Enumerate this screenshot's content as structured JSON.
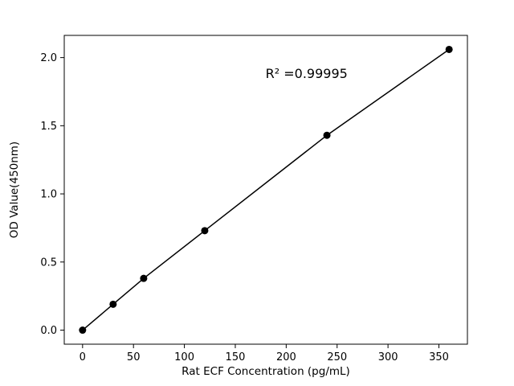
{
  "chart_data": {
    "type": "line",
    "title": "",
    "xlabel": "Rat ECF Concentration (pg/mL)",
    "ylabel": "OD Value(450nm)",
    "x": [
      0,
      30,
      60,
      120,
      240,
      360
    ],
    "y": [
      0.0,
      0.19,
      0.38,
      0.73,
      1.43,
      2.06
    ],
    "xlim": [
      -18,
      378
    ],
    "ylim": [
      -0.103,
      2.163
    ],
    "xticks": [
      0,
      50,
      100,
      150,
      200,
      250,
      300,
      350
    ],
    "yticks": [
      0.0,
      0.5,
      1.0,
      1.5,
      2.0
    ],
    "grid": false,
    "legend_position": "none",
    "annotation": {
      "text": "R² =0.99995",
      "x": 220,
      "y": 1.85
    },
    "line_color": "#000000",
    "marker_color": "#000000",
    "frame_color": "#000000"
  }
}
